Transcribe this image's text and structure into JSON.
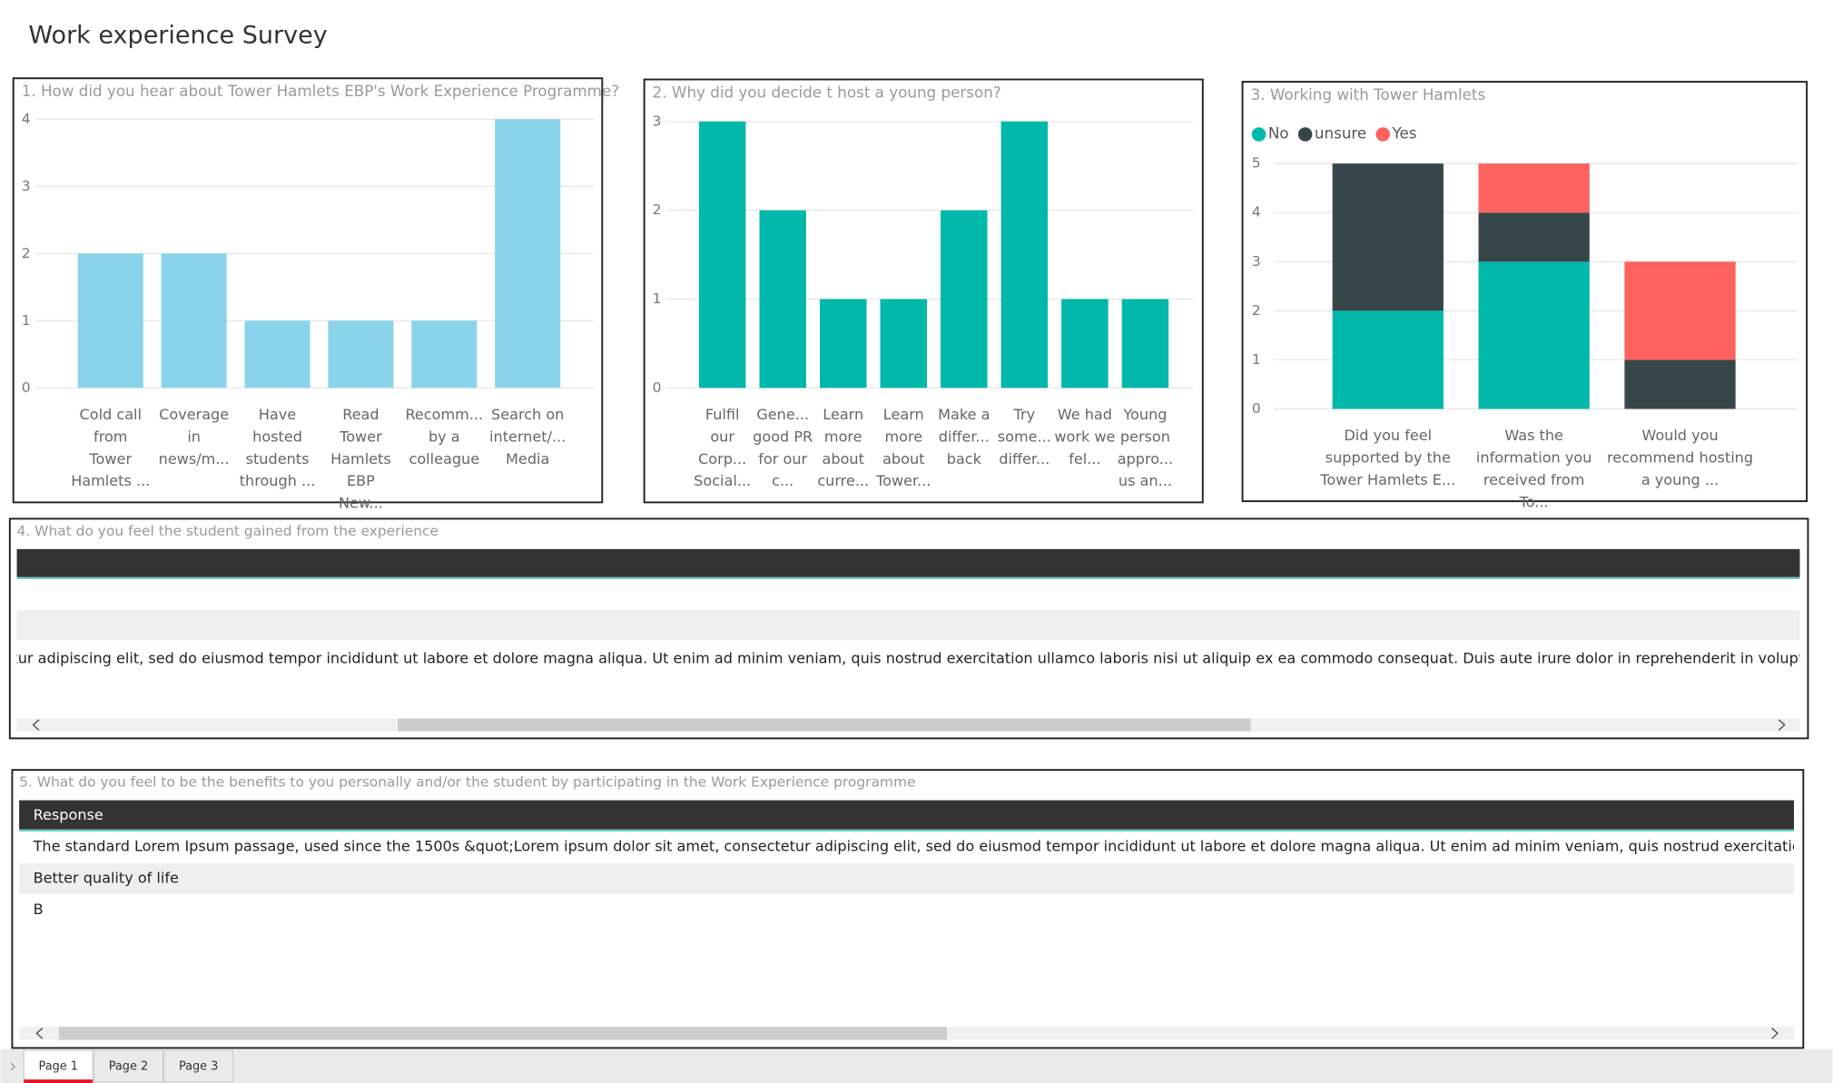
{
  "title": "Work experience Survey",
  "chart_data": [
    {
      "type": "bar",
      "title": "1. How did you hear about Tower Hamlets EBP's Work Experience Programme?",
      "categories": [
        "Cold call from Tower Hamlets ...",
        "Coverage in news/m...",
        "Have hosted students through ...",
        "Read Tower Hamlets EBP New...",
        "Recomm... by a colleague",
        "Search on internet/... Media"
      ],
      "values": [
        2,
        2,
        1,
        1,
        1,
        4
      ],
      "color": "#8ad4eb",
      "ylim": [
        0,
        4
      ],
      "yticks": [
        0,
        1,
        2,
        3,
        4
      ],
      "grid": true
    },
    {
      "type": "bar",
      "title": "2. Why did you decide t host a young person?",
      "categories": [
        "Fulfil our Corp... Social...",
        "Gene... good PR for our c...",
        "Learn more about curre...",
        "Learn more about Tower...",
        "Make a differ... back",
        "Try some... differ...",
        "We had work we fel...",
        "Young person appro... us an..."
      ],
      "values": [
        3,
        2,
        1,
        1,
        2,
        3,
        1,
        1
      ],
      "color": "#01b8aa",
      "ylim": [
        0,
        3
      ],
      "yticks": [
        0,
        1,
        2,
        3
      ],
      "grid": true
    },
    {
      "type": "bar",
      "stacked": true,
      "title": "3. Working with Tower Hamlets",
      "legend": "top-left",
      "categories": [
        "Did you feel supported by the Tower Hamlets E...",
        "Was the information you received from To...",
        "Would you recommend hosting a young ..."
      ],
      "series": [
        {
          "name": "No",
          "color": "#01b8aa",
          "values": [
            2,
            3,
            0
          ]
        },
        {
          "name": "unsure",
          "color": "#374649",
          "values": [
            3,
            1,
            1
          ]
        },
        {
          "name": "Yes",
          "color": "#fd625e",
          "values": [
            0,
            1,
            2
          ]
        }
      ],
      "ylim": [
        0,
        5
      ],
      "yticks": [
        0,
        1,
        2,
        3,
        4,
        5
      ],
      "grid": true
    }
  ],
  "table4": {
    "title": "4. What do you feel the student gained from the experience",
    "rows": [
      "tur adipiscing elit, sed do eiusmod tempor incididunt ut labore et dolore magna aliqua. Ut enim ad minim veniam, quis nostrud exercitation ullamco laboris nisi ut aliquip ex ea commodo consequat. Duis aute irure dolor in reprehenderit in voluptate velit esse cillu"
    ]
  },
  "table5": {
    "title": "5. What do you feel to be the benefits to you personally and/or the student by participating in the  Work Experience programme",
    "header": "Response",
    "rows": [
      "The standard Lorem Ipsum passage, used since the 1500s  &quot;Lorem ipsum dolor sit amet, consectetur adipiscing elit, sed do eiusmod tempor incididunt ut labore et dolore magna aliqua. Ut enim ad minim veniam, quis nostrud exercitation ullamco laboris n",
      "Better quality of life",
      "B"
    ]
  },
  "tabs": [
    "Page 1",
    "Page 2",
    "Page 3"
  ]
}
